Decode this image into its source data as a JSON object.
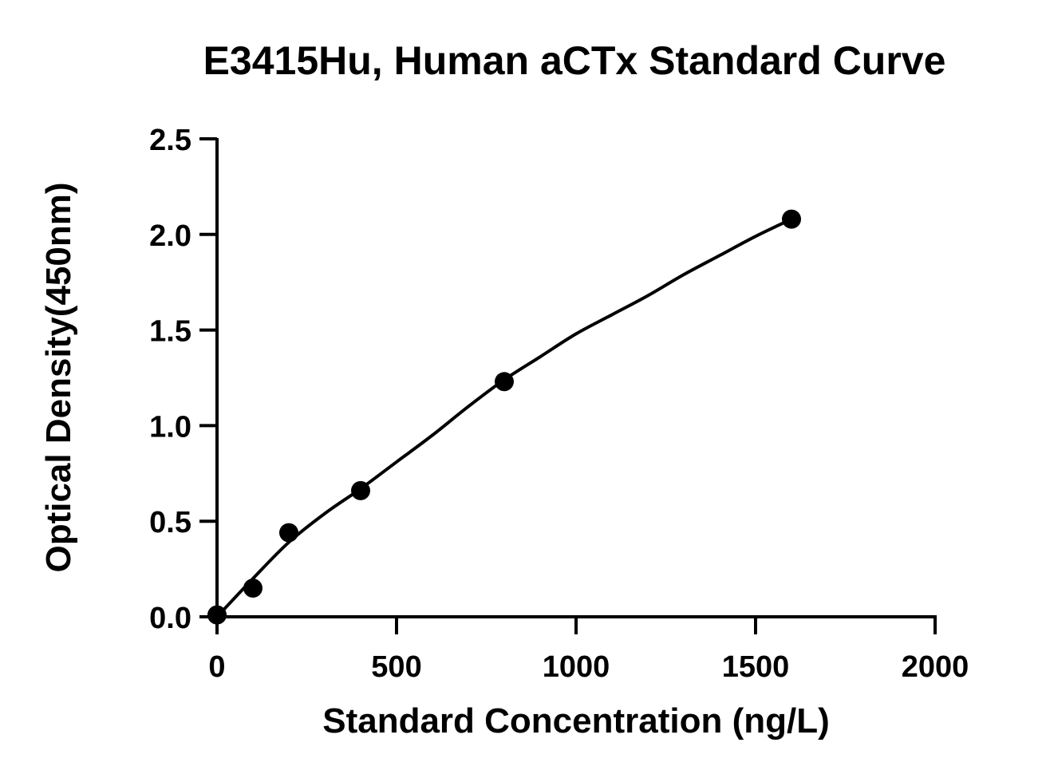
{
  "chart_data": {
    "type": "scatter",
    "title": "E3415Hu, Human aCTx Standard Curve",
    "xlabel": "Standard Concentration (ng/L)",
    "ylabel": "Optical Density(450nm)",
    "xlim": [
      0,
      2000
    ],
    "ylim": [
      0,
      2.5
    ],
    "x_ticks": [
      0,
      500,
      1000,
      1500,
      2000
    ],
    "x_tick_labels": [
      "0",
      "500",
      "1000",
      "1500",
      "2000"
    ],
    "y_ticks": [
      0,
      0.5,
      1.0,
      1.5,
      2.0,
      2.5
    ],
    "y_tick_labels": [
      "0.0",
      "0.5",
      "1.0",
      "1.5",
      "2.0",
      "2.5"
    ],
    "grid": false,
    "legend": "none",
    "series": [
      {
        "x": [
          0,
          100,
          200,
          400,
          800,
          1600
        ],
        "y": [
          0.01,
          0.15,
          0.44,
          0.66,
          1.23,
          2.08
        ],
        "marker": "circle",
        "color": "#000000"
      }
    ],
    "fit_curve": {
      "x": [
        0,
        100,
        200,
        300,
        400,
        500,
        600,
        700,
        800,
        900,
        1000,
        1100,
        1200,
        1300,
        1400,
        1500,
        1600
      ],
      "y": [
        0.0,
        0.2,
        0.39,
        0.54,
        0.67,
        0.81,
        0.95,
        1.1,
        1.24,
        1.36,
        1.48,
        1.58,
        1.68,
        1.79,
        1.89,
        1.99,
        2.08
      ],
      "color": "#000000"
    }
  }
}
